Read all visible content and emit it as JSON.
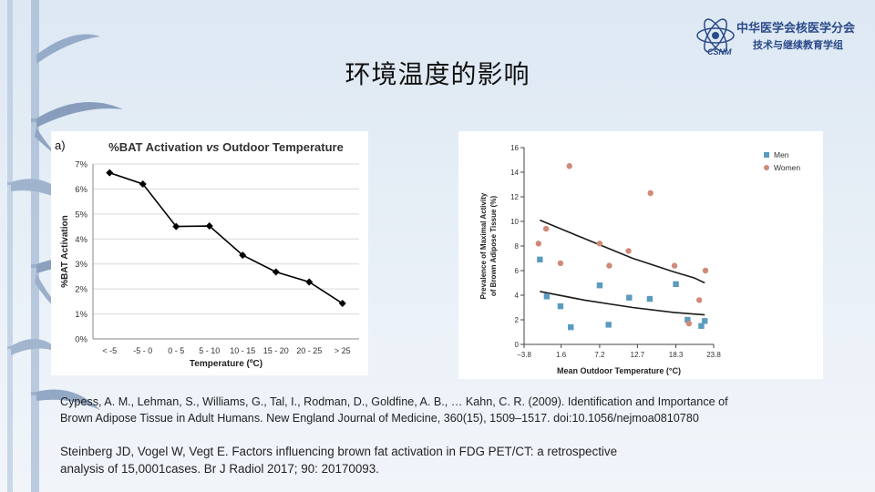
{
  "header": {
    "org_name": "中华医学会核医学分会",
    "org_sub": "技术与继续教育学组",
    "logo_text": "CSNM"
  },
  "page": {
    "title": "环境温度的影响"
  },
  "chart_data": [
    {
      "type": "line",
      "panel_label": "a)",
      "title": "%BAT Activation vs Outdoor Temperature",
      "title_parts": [
        "%BAT Activation ",
        "vs",
        " Outdoor Temperature"
      ],
      "xlabel": "Temperature (ºC)",
      "ylabel": "%BAT Activation",
      "categories": [
        "< -5",
        "-5 - 0",
        "0 - 5",
        "5 - 10",
        "10 - 15",
        "15 - 20",
        "20 - 25",
        "> 25"
      ],
      "values": [
        6.65,
        6.2,
        4.5,
        4.52,
        3.35,
        2.68,
        2.28,
        1.42
      ],
      "ylim": [
        0,
        7
      ],
      "yticks": [
        "0%",
        "1%",
        "2%",
        "3%",
        "4%",
        "5%",
        "6%",
        "7%"
      ],
      "grid": true
    },
    {
      "type": "scatter",
      "xlabel": "Mean Outdoor Temperature (°C)",
      "ylabel_lines": [
        "Prevalence of Maximal Activity",
        "of Brown Adipose Tissue (%)"
      ],
      "xlim": [
        -3.8,
        23.8
      ],
      "ylim": [
        0,
        16
      ],
      "xticks": [
        "−3.8",
        "1.6",
        "7.2",
        "12.7",
        "18.3",
        "23.8"
      ],
      "xtick_values": [
        -3.8,
        1.6,
        7.2,
        12.7,
        18.3,
        23.8
      ],
      "yticks": [
        "0",
        "2",
        "4",
        "6",
        "8",
        "10",
        "12",
        "14",
        "16"
      ],
      "legend_position": "top-right",
      "series": [
        {
          "name": "Men",
          "color": "#5b9bbf",
          "marker": "square",
          "x": [
            -1.5,
            -0.5,
            1.5,
            3.0,
            7.2,
            8.5,
            11.5,
            14.5,
            18.3,
            20.0,
            22.0,
            22.5
          ],
          "y": [
            6.9,
            3.9,
            3.1,
            1.4,
            4.8,
            1.6,
            3.8,
            3.7,
            4.9,
            2.0,
            1.5,
            1.9
          ]
        },
        {
          "name": "Women",
          "color": "#d08a78",
          "marker": "circle",
          "x": [
            -1.7,
            -0.6,
            1.5,
            2.8,
            7.2,
            8.6,
            11.4,
            14.6,
            18.1,
            20.2,
            21.7,
            22.6
          ],
          "y": [
            8.2,
            9.4,
            6.6,
            14.5,
            8.2,
            6.4,
            7.6,
            12.3,
            6.4,
            1.7,
            3.6,
            6.0
          ]
        }
      ],
      "fit_lines": [
        {
          "x": [
            -1.5,
            5,
            12,
            18,
            21,
            22.5
          ],
          "y": [
            10.1,
            8.6,
            7.0,
            5.9,
            5.4,
            5.0
          ]
        },
        {
          "x": [
            -1.5,
            5,
            12,
            18,
            22.5
          ],
          "y": [
            4.3,
            3.6,
            3.0,
            2.6,
            2.4
          ]
        }
      ],
      "fit_color": "#1a1a1a"
    }
  ],
  "references": {
    "ref1_line1": "Cypess, A. M., Lehman, S., Williams, G., Tal, I., Rodman, D., Goldfine, A. B., … Kahn, C. R. (2009). Identification and Importance of",
    "ref1_line2": "Brown Adipose Tissue in Adult Humans. New England Journal of Medicine, 360(15), 1509–1517. doi:10.1056/nejmoa0810780",
    "ref2_line1": "Steinberg JD, Vogel W, Vegt E. Factors influencing brown fat activation in FDG PET/CT: a retrospective",
    "ref2_line2": "analysis of 15,0001cases. Br J Radiol 2017; 90: 20170093."
  }
}
